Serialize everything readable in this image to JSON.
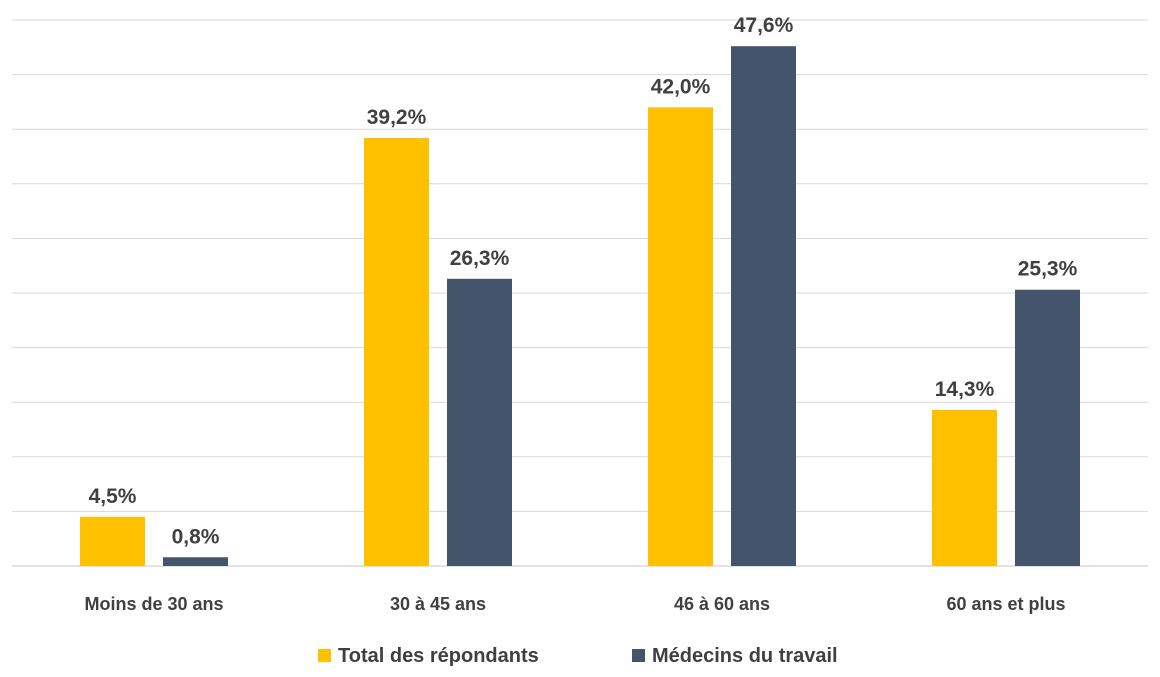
{
  "chart_data": {
    "type": "bar",
    "title": "",
    "xlabel": "",
    "ylabel": "",
    "categories": [
      "Moins de 30 ans",
      "30 à 45 ans",
      "46 à 60 ans",
      "60 ans et plus"
    ],
    "series": [
      {
        "name": "Total des répondants",
        "color": "#ffc000",
        "values": [
          4.5,
          39.2,
          42.0,
          14.3
        ],
        "labels": [
          "4,5%",
          "39,2%",
          "42,0%",
          "14,3%"
        ]
      },
      {
        "name": "Médecins du travail",
        "color": "#44546a",
        "values": [
          0.8,
          26.3,
          47.6,
          25.3
        ],
        "labels": [
          "0,8%",
          "26,3%",
          "47,6%",
          "25,3%"
        ]
      }
    ],
    "ylim": [
      0,
      50
    ],
    "grid": true,
    "gridline_color": "#d9d9d9",
    "y_axis_visible": false,
    "legend_position": "bottom",
    "data_labels": true
  }
}
